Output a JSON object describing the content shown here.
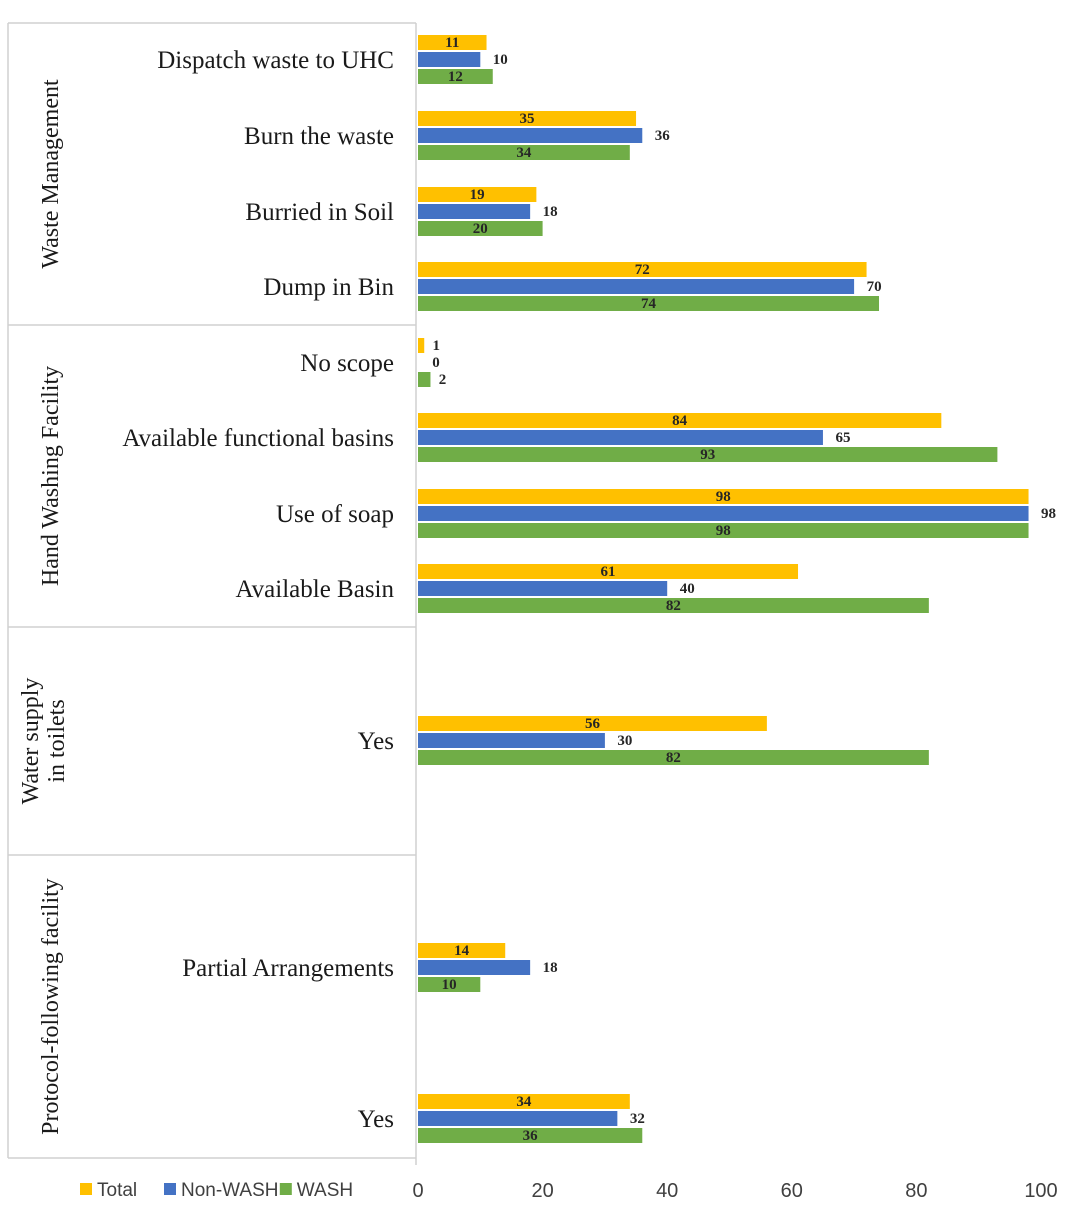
{
  "chart_data": {
    "type": "bar",
    "orientation": "horizontal",
    "xlim": [
      0,
      100
    ],
    "x_ticks": [
      "0",
      "20",
      "40",
      "60",
      "80",
      "100"
    ],
    "legend_position": "bottom-left",
    "grid": false,
    "colors": {
      "Total": "#FFC000",
      "Non-WASH": "#4472C4",
      "WASH": "#70AD47"
    },
    "series_order": [
      "Total",
      "Non-WASH",
      "WASH"
    ],
    "legend": [
      "Total",
      "Non-WASH",
      "WASH"
    ],
    "groups": [
      {
        "name": "Waste Management",
        "items": [
          {
            "label": "Dispatch waste to UHC",
            "values": {
              "Total": 11,
              "Non-WASH": 10,
              "WASH": 12
            }
          },
          {
            "label": "Burn the waste",
            "values": {
              "Total": 35,
              "Non-WASH": 36,
              "WASH": 34
            }
          },
          {
            "label": "Burried in Soil",
            "values": {
              "Total": 19,
              "Non-WASH": 18,
              "WASH": 20
            }
          },
          {
            "label": "Dump in Bin",
            "values": {
              "Total": 72,
              "Non-WASH": 70,
              "WASH": 74
            }
          }
        ]
      },
      {
        "name": "Hand Washing Facility",
        "items": [
          {
            "label": "No scope",
            "values": {
              "Total": 1,
              "Non-WASH": 0,
              "WASH": 2
            }
          },
          {
            "label": "Available functional basins",
            "values": {
              "Total": 84,
              "Non-WASH": 65,
              "WASH": 93
            }
          },
          {
            "label": "Use of soap",
            "values": {
              "Total": 98,
              "Non-WASH": 98,
              "WASH": 98
            }
          },
          {
            "label": "Available Basin",
            "values": {
              "Total": 61,
              "Non-WASH": 40,
              "WASH": 82
            }
          }
        ]
      },
      {
        "name": "Water supply in toilets",
        "items": [
          {
            "label": "Yes",
            "values": {
              "Total": 56,
              "Non-WASH": 30,
              "WASH": 82
            }
          }
        ]
      },
      {
        "name": "Protocol-following facility",
        "items": [
          {
            "label": "Partial Arrangements",
            "values": {
              "Total": 14,
              "Non-WASH": 18,
              "WASH": 10
            }
          },
          {
            "label": "Yes",
            "values": {
              "Total": 34,
              "Non-WASH": 32,
              "WASH": 36
            }
          }
        ]
      }
    ]
  }
}
